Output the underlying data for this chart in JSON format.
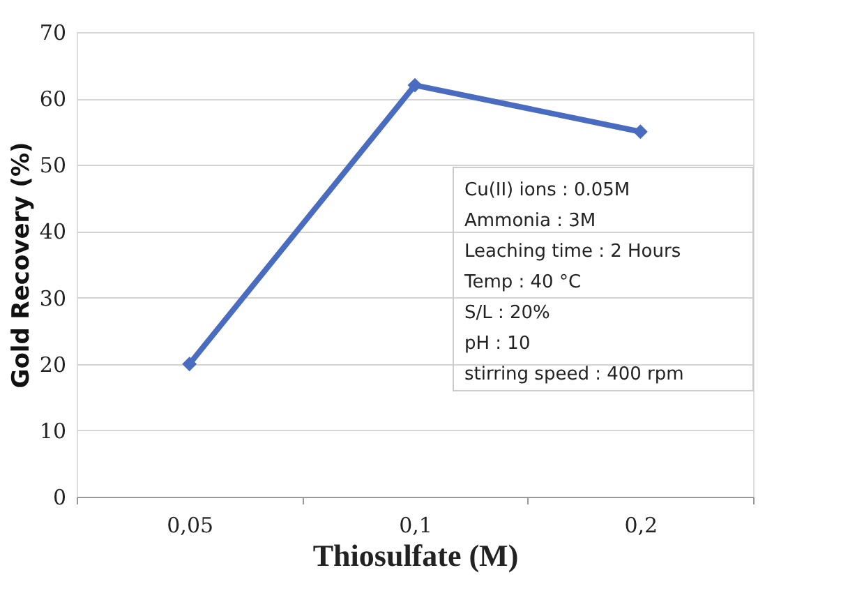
{
  "chart_data": {
    "type": "line",
    "xlabel": "Thiosulfate (M)",
    "ylabel": "Gold Recovery (%)",
    "categories": [
      "0,05",
      "0,1",
      "0,2"
    ],
    "series": [
      {
        "color": "#4a6cc0",
        "values": [
          20,
          62,
          55
        ]
      }
    ],
    "ylim": [
      0,
      70
    ],
    "yticks": [
      0,
      10,
      20,
      30,
      40,
      50,
      60,
      70
    ],
    "grid": "y",
    "marker": "diamond",
    "line_style": "solid",
    "annotations": [
      "Cu(II) ions : 0.05M",
      "Ammonia : 3M",
      "Leaching time : 2 Hours",
      "Temp : 40 °C",
      "S/L : 20%",
      "pH : 10",
      "stirring speed : 400 rpm"
    ]
  }
}
